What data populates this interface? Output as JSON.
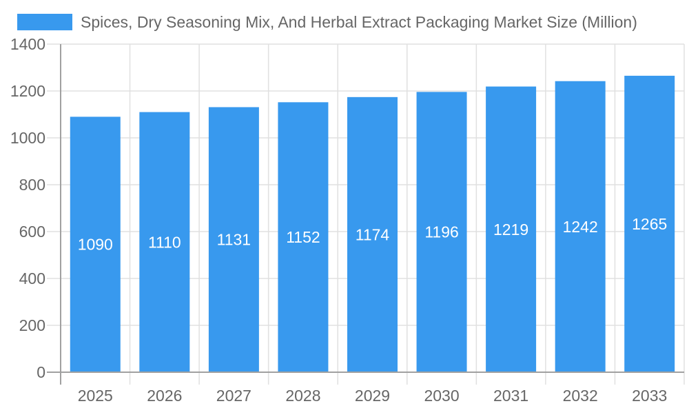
{
  "chart_data": {
    "type": "bar",
    "title": "",
    "legend": {
      "entries": [
        "Spices, Dry Seasoning Mix, And Herbal Extract Packaging Market Size (Million)"
      ],
      "placement": "top"
    },
    "categories": [
      "2025",
      "2026",
      "2027",
      "2028",
      "2029",
      "2030",
      "2031",
      "2032",
      "2033"
    ],
    "series": [
      {
        "name": "Spices, Dry Seasoning Mix, And Herbal Extract Packaging Market Size (Million)",
        "values": [
          1090,
          1110,
          1131,
          1152,
          1174,
          1196,
          1219,
          1242,
          1265
        ]
      }
    ],
    "xlabel": "",
    "ylabel": "",
    "ylim": [
      0,
      1400
    ],
    "yticks": [
      0,
      200,
      400,
      600,
      800,
      1000,
      1200,
      1400
    ],
    "grid": true,
    "data_labels": true,
    "colors": {
      "bar": "#3899EE",
      "grid": "#e0e0e0",
      "axis": "#a0a0a0",
      "text": "#666666",
      "label": "#ffffff"
    }
  }
}
